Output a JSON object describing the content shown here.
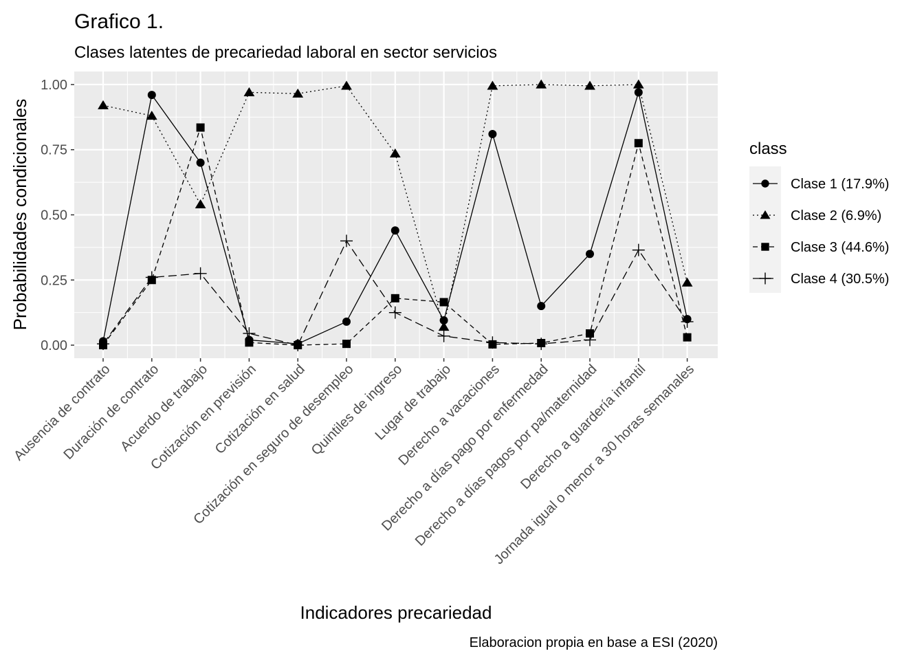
{
  "chart_data": {
    "type": "line",
    "title": "Grafico 1.",
    "subtitle": "Clases latentes de precariedad laboral en sector servicios",
    "xlabel": "Indicadores precariedad",
    "ylabel": "Probabilidades condicionales",
    "caption": "Elaboracion propia en base a ESI (2020)",
    "ylim": [
      -0.05,
      1.05
    ],
    "yticks": [
      0,
      0.25,
      0.5,
      0.75,
      1
    ],
    "ytick_labels": [
      "0.00",
      "0.25",
      "0.50",
      "0.75",
      "1.00"
    ],
    "grid": true,
    "legend_title": "class",
    "legend_position": "right",
    "categories": [
      "Ausencia de contrato",
      "Duración de contrato",
      "Acuerdo de trabajo",
      "Cotización en previsión",
      "Cotización en salud",
      "Cotización en seguro de desempleo",
      "Quintiles de ingreso",
      "Lugar de trabajo",
      "Derecho a vacaciones",
      "Derecho a días pago por enfermedad",
      "Derecho a días pagos por pa/maternidad",
      "Derecho a guardería infantil",
      "Jornada igual o menor a 30 horas semanales"
    ],
    "series": [
      {
        "name": "Clase 1 (17.9%)",
        "marker": "circle",
        "line": "solid",
        "values": [
          0.015,
          0.96,
          0.7,
          0.02,
          0.005,
          0.09,
          0.44,
          0.095,
          0.81,
          0.15,
          0.35,
          0.97,
          0.1
        ]
      },
      {
        "name": "Clase 2 (6.9%)",
        "marker": "triangle",
        "line": "dotted",
        "values": [
          0.92,
          0.88,
          0.54,
          0.97,
          0.965,
          0.995,
          0.735,
          0.07,
          0.995,
          1.0,
          0.995,
          1.0,
          0.24
        ]
      },
      {
        "name": "Clase 3 (44.6%)",
        "marker": "square",
        "line": "dashed",
        "values": [
          0.0,
          0.25,
          0.835,
          0.01,
          0.0,
          0.005,
          0.18,
          0.165,
          0.003,
          0.008,
          0.045,
          0.775,
          0.03
        ]
      },
      {
        "name": "Clase 4 (30.5%)",
        "marker": "plus",
        "line": "longdash",
        "values": [
          0.005,
          0.26,
          0.275,
          0.045,
          0.0,
          0.4,
          0.125,
          0.035,
          0.01,
          0.005,
          0.02,
          0.365,
          0.09
        ]
      }
    ]
  }
}
